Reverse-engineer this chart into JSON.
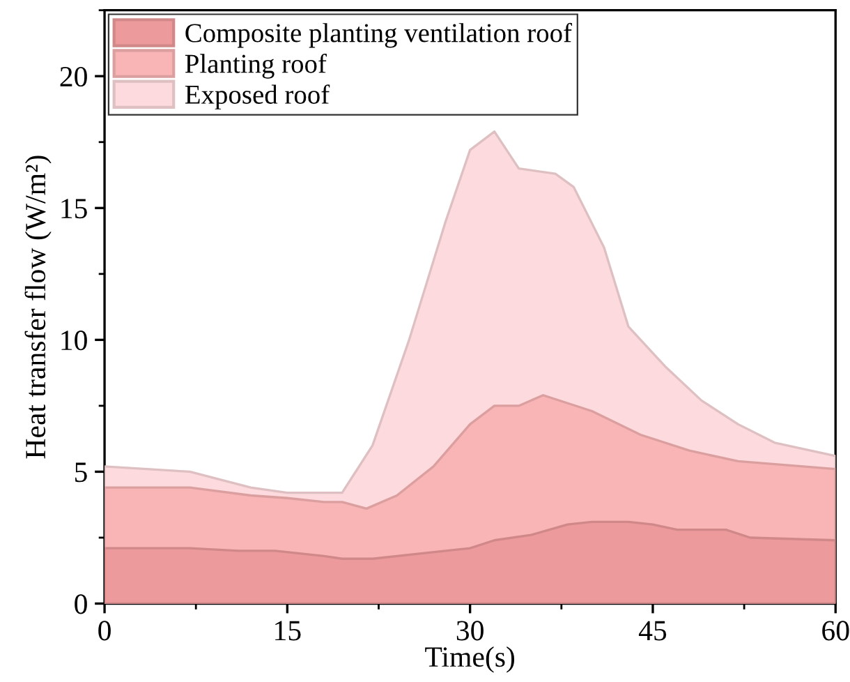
{
  "chart_data": {
    "type": "area",
    "xlabel": "Time(s)",
    "ylabel": "Heat transfer flow (W/m²)",
    "xlim": [
      0,
      60
    ],
    "xticks": [
      0,
      15,
      30,
      45,
      60
    ],
    "ylim": [
      0,
      22.5
    ],
    "yticks": [
      0,
      5,
      10,
      15,
      20
    ],
    "legend": "top left",
    "grid": false,
    "series": [
      {
        "name": "Composite planting ventilation roof",
        "color": "#ec9a9c",
        "x": [
          0,
          7,
          11,
          14,
          18,
          19.5,
          22,
          26,
          30,
          32,
          35,
          38,
          40,
          43,
          45,
          47,
          51,
          53,
          60
        ],
        "values": [
          2.1,
          2.1,
          2.0,
          2.0,
          1.8,
          1.7,
          1.7,
          1.9,
          2.1,
          2.4,
          2.6,
          3.0,
          3.1,
          3.1,
          3.0,
          2.8,
          2.8,
          2.5,
          2.4
        ]
      },
      {
        "name": "Planting roof",
        "color": "#f9b5b6",
        "x": [
          0,
          7,
          12,
          15,
          18,
          19.5,
          21.5,
          24,
          27,
          30,
          32,
          34,
          36,
          40,
          44,
          48,
          52,
          60
        ],
        "values": [
          4.4,
          4.4,
          4.1,
          4.0,
          3.85,
          3.85,
          3.6,
          4.1,
          5.2,
          6.8,
          7.5,
          7.5,
          7.9,
          7.3,
          6.4,
          5.8,
          5.4,
          5.1
        ]
      },
      {
        "name": "Exposed roof",
        "color": "#fcdadd",
        "x": [
          0,
          7,
          12,
          15,
          19.5,
          22,
          25,
          28,
          30,
          32,
          34,
          37,
          38.5,
          41,
          43,
          46,
          49,
          52,
          55,
          60
        ],
        "values": [
          5.2,
          5.0,
          4.4,
          4.2,
          4.2,
          6.0,
          10,
          14.5,
          17.2,
          17.9,
          16.5,
          16.3,
          15.8,
          13.5,
          10.5,
          9.0,
          7.7,
          6.8,
          6.1,
          5.6
        ]
      }
    ]
  }
}
